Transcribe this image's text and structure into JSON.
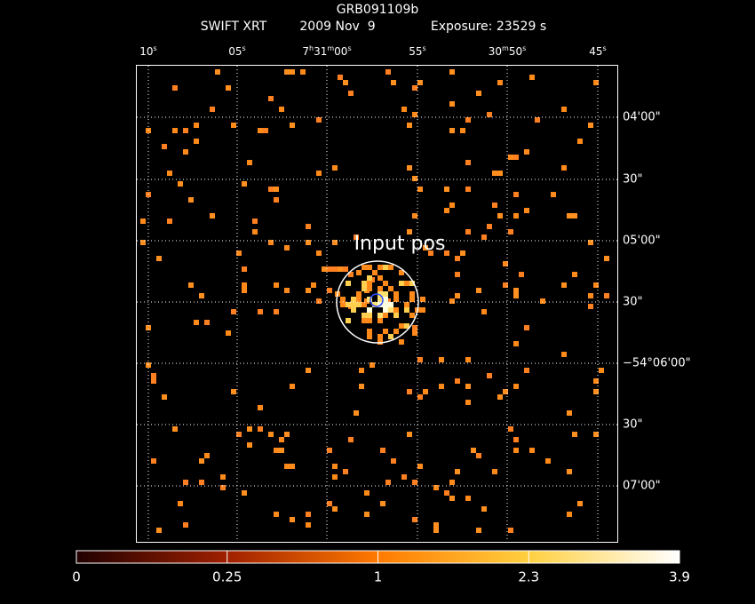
{
  "header": {
    "title": "GRB091109b",
    "instrument": "SWIFT XRT",
    "date": "2009 Nov  9",
    "exposure": "Exposure: 23529 s"
  },
  "ra_labels": [
    [
      "10",
      "s"
    ],
    [
      "05",
      "s"
    ],
    [
      "7",
      "h",
      "31",
      "m",
      "00",
      "s"
    ],
    [
      "55",
      "s"
    ],
    [
      "30",
      "m",
      "50",
      "s"
    ],
    [
      "45",
      "s"
    ]
  ],
  "dec_labels": [
    "04'00\"",
    "30\"",
    "05'00\"",
    "30\"",
    "−54°06'00\"",
    "30\"",
    "07'00\""
  ],
  "marker_label": "Input pos",
  "colorbar": {
    "ticks": [
      0,
      0.25,
      1,
      2.3,
      3.9
    ]
  }
}
